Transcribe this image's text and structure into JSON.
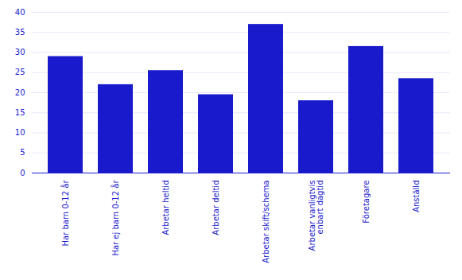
{
  "chart_data": {
    "type": "bar",
    "categories": [
      "Har barn 0-12 år",
      "Har ej barn 0-12 år",
      "Arbetar heltid",
      "Arbetar deltid",
      "Arbetar skift/schema",
      "Arbetar vanligtvis\nenbart dagtid",
      "Företagare",
      "Anställd"
    ],
    "values": [
      29,
      22,
      25.5,
      19.5,
      37,
      18,
      31.5,
      23.5
    ],
    "color": "#1a1acd",
    "ylim": [
      0,
      40
    ],
    "yticks": [
      0,
      5,
      10,
      15,
      20,
      25,
      30,
      35,
      40
    ],
    "grid": true
  }
}
